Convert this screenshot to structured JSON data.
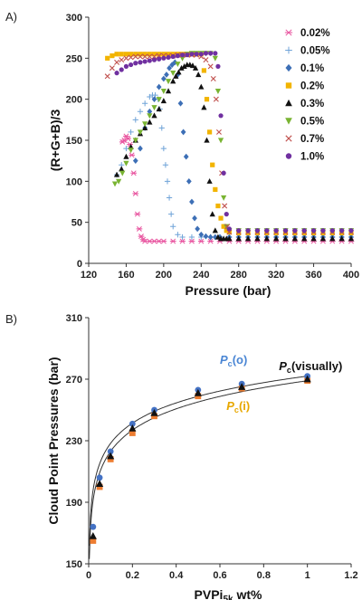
{
  "chart_data": [
    {
      "panel_label": "A)",
      "type": "scatter",
      "xlabel": "Pressure (bar)",
      "ylabel": "(R+G+B)/3",
      "xlim": [
        120,
        400
      ],
      "ylim": [
        0,
        300
      ],
      "xticks": [
        "120",
        "160",
        "200",
        "240",
        "280",
        "320",
        "360",
        "400"
      ],
      "yticks": [
        "0",
        "50",
        "100",
        "150",
        "200",
        "250",
        "300"
      ],
      "legend_position": "top-right",
      "grid": false,
      "series": [
        {
          "name": "0.02%",
          "color": "#e8549f",
          "marker": "star",
          "x": [
            156,
            158,
            160,
            162,
            164,
            166,
            168,
            170,
            172,
            174,
            176,
            178,
            180,
            185,
            190,
            195,
            200,
            210,
            220,
            230,
            240,
            250,
            260,
            270,
            280,
            290,
            300,
            310,
            320,
            330,
            340,
            350,
            360,
            370,
            380,
            390,
            400
          ],
          "y": [
            148,
            150,
            155,
            152,
            145,
            132,
            110,
            85,
            60,
            42,
            33,
            29,
            27,
            27,
            27,
            27,
            27,
            27,
            27,
            27,
            27,
            27,
            27,
            27,
            27,
            27,
            27,
            27,
            27,
            27,
            27,
            27,
            27,
            27,
            27,
            27,
            27
          ]
        },
        {
          "name": "0.05%",
          "color": "#6fa3d8",
          "marker": "plus",
          "x": [
            150,
            155,
            160,
            165,
            170,
            175,
            180,
            185,
            188,
            191,
            194,
            196,
            198,
            200,
            202,
            204,
            206,
            208,
            210,
            215,
            220,
            230,
            240,
            250,
            260,
            270,
            280,
            290,
            300,
            310,
            320,
            330,
            340,
            350,
            360,
            370,
            380,
            390,
            400
          ],
          "y": [
            108,
            120,
            140,
            160,
            175,
            185,
            195,
            203,
            205,
            205,
            200,
            188,
            165,
            140,
            120,
            100,
            80,
            60,
            45,
            35,
            32,
            32,
            32,
            32,
            32,
            32,
            32,
            32,
            32,
            32,
            32,
            32,
            32,
            32,
            32,
            32,
            32,
            32,
            32
          ]
        },
        {
          "name": "0.1%",
          "color": "#3d6fb6",
          "marker": "diamond",
          "x": [
            170,
            175,
            180,
            185,
            190,
            195,
            200,
            203,
            206,
            209,
            212,
            215,
            218,
            221,
            224,
            227,
            230,
            233,
            236,
            240,
            245,
            250,
            255,
            260,
            270,
            280,
            290,
            300,
            310,
            320,
            330,
            340,
            350,
            360,
            370,
            380,
            390,
            400
          ],
          "y": [
            125,
            140,
            165,
            185,
            200,
            215,
            225,
            230,
            238,
            242,
            245,
            230,
            195,
            160,
            130,
            100,
            75,
            55,
            42,
            35,
            33,
            32,
            32,
            32,
            32,
            32,
            32,
            32,
            32,
            32,
            32,
            32,
            32,
            32,
            32,
            32,
            32,
            32
          ]
        },
        {
          "name": "0.2%",
          "color": "#f2b400",
          "marker": "square",
          "x": [
            140,
            145,
            150,
            155,
            160,
            165,
            170,
            175,
            180,
            185,
            190,
            195,
            200,
            205,
            210,
            215,
            220,
            225,
            230,
            235,
            240,
            243,
            246,
            249,
            252,
            255,
            258,
            261,
            264,
            267,
            270,
            280,
            290,
            300,
            310,
            320,
            330,
            340,
            350,
            360,
            370,
            380,
            390,
            400
          ],
          "y": [
            250,
            253,
            255,
            255,
            255,
            255,
            255,
            255,
            255,
            255,
            255,
            255,
            255,
            255,
            255,
            255,
            255,
            255,
            255,
            255,
            255,
            235,
            200,
            160,
            120,
            90,
            70,
            55,
            45,
            40,
            38,
            37,
            37,
            37,
            37,
            37,
            37,
            37,
            37,
            37,
            37,
            37,
            37,
            37
          ]
        },
        {
          "name": "0.3%",
          "color": "#111111",
          "marker": "triangle",
          "x": [
            150,
            155,
            160,
            165,
            170,
            175,
            180,
            185,
            190,
            195,
            200,
            205,
            210,
            213,
            216,
            219,
            222,
            225,
            228,
            231,
            234,
            237,
            240,
            243,
            246,
            249,
            252,
            255,
            258,
            261,
            264,
            267,
            270,
            280,
            290,
            300,
            310,
            320,
            330,
            340,
            350,
            360,
            370,
            380,
            390,
            400
          ],
          "y": [
            108,
            115,
            130,
            142,
            150,
            158,
            165,
            172,
            180,
            188,
            198,
            210,
            222,
            228,
            233,
            238,
            240,
            242,
            242,
            241,
            238,
            230,
            215,
            190,
            150,
            100,
            60,
            40,
            32,
            30,
            30,
            30,
            30,
            30,
            30,
            30,
            30,
            30,
            30,
            30,
            30,
            30,
            30,
            30,
            30,
            30
          ]
        },
        {
          "name": "0.5%",
          "color": "#79b432",
          "marker": "triangle-down",
          "x": [
            148,
            152,
            156,
            160,
            165,
            170,
            175,
            180,
            185,
            190,
            195,
            200,
            205,
            210,
            215,
            220,
            225,
            230,
            235,
            240,
            245,
            250,
            255,
            258,
            261,
            264,
            267,
            270,
            280,
            290,
            300,
            310,
            320,
            330,
            340,
            350,
            360,
            370,
            380,
            390,
            400
          ],
          "y": [
            97,
            100,
            110,
            122,
            138,
            150,
            160,
            170,
            180,
            190,
            200,
            210,
            222,
            232,
            243,
            250,
            255,
            256,
            256,
            256,
            256,
            256,
            250,
            210,
            150,
            80,
            45,
            40,
            40,
            40,
            40,
            40,
            40,
            40,
            40,
            40,
            40,
            40,
            40,
            40,
            40
          ]
        },
        {
          "name": "0.7%",
          "color": "#c0504d",
          "marker": "x",
          "x": [
            140,
            145,
            150,
            155,
            160,
            165,
            170,
            175,
            180,
            185,
            190,
            195,
            200,
            205,
            210,
            215,
            220,
            225,
            230,
            235,
            240,
            245,
            250,
            253,
            256,
            259,
            262,
            265,
            268,
            270,
            280,
            290,
            300,
            310,
            320,
            330,
            340,
            350,
            360,
            370,
            380,
            390,
            400
          ],
          "y": [
            228,
            238,
            245,
            248,
            250,
            251,
            252,
            252,
            252,
            252,
            252,
            253,
            253,
            253,
            253,
            254,
            254,
            254,
            254,
            254,
            252,
            248,
            240,
            225,
            200,
            160,
            110,
            70,
            45,
            38,
            38,
            38,
            38,
            38,
            38,
            38,
            38,
            38,
            38,
            38,
            38,
            38,
            38
          ]
        },
        {
          "name": "1.0%",
          "color": "#7030a0",
          "marker": "circle",
          "x": [
            150,
            155,
            160,
            165,
            170,
            175,
            180,
            185,
            190,
            195,
            200,
            205,
            210,
            215,
            220,
            225,
            230,
            235,
            240,
            245,
            250,
            255,
            258,
            261,
            264,
            267,
            270,
            280,
            290,
            300,
            310,
            320,
            330,
            340,
            350,
            360,
            370,
            380,
            390,
            400
          ],
          "y": [
            232,
            236,
            240,
            242,
            244,
            245,
            246,
            247,
            248,
            249,
            250,
            251,
            252,
            253,
            254,
            254,
            255,
            255,
            255,
            256,
            256,
            256,
            240,
            180,
            110,
            60,
            42,
            40,
            40,
            40,
            40,
            40,
            40,
            40,
            40,
            40,
            40,
            40,
            40,
            40
          ]
        }
      ]
    },
    {
      "panel_label": "B)",
      "type": "scatter",
      "xlabel": "PVPi",
      "xlabel_sub": "5k",
      "xlabel_suffix": " wt%",
      "ylabel": "Cloud  Point Pressures  (bar)",
      "xlim": [
        0,
        1.2
      ],
      "ylim": [
        150,
        310
      ],
      "xticks": [
        "0",
        "0.2",
        "0.4",
        "0.6",
        "0.8",
        "1",
        "1.2"
      ],
      "yticks": [
        "150",
        "190",
        "230",
        "270",
        "310"
      ],
      "grid": false,
      "series": [
        {
          "name": "Pc(o)",
          "color": "#4472c4",
          "marker": "circle",
          "x": [
            0.02,
            0.05,
            0.1,
            0.2,
            0.3,
            0.5,
            0.7,
            1.0
          ],
          "y": [
            174,
            206,
            223,
            241,
            250,
            263,
            267,
            272
          ]
        },
        {
          "name": "Pc(visually)",
          "color": "#111111",
          "marker": "triangle",
          "x": [
            0.02,
            0.05,
            0.1,
            0.2,
            0.3,
            0.5,
            0.7,
            1.0
          ],
          "y": [
            168,
            202,
            220,
            238,
            248,
            261,
            265,
            270
          ]
        },
        {
          "name": "Pc(i)",
          "color": "#ed7d31",
          "marker": "square",
          "x": [
            0.02,
            0.05,
            0.1,
            0.2,
            0.3,
            0.5,
            0.7,
            1.0
          ],
          "y": [
            165,
            200,
            218,
            235,
            246,
            259,
            264,
            269
          ]
        }
      ],
      "annotations": [
        {
          "prefix": "P",
          "sub": "c",
          "suffix": "(o)",
          "color": "#4a86d4",
          "x": 0.6,
          "y": 280
        },
        {
          "prefix": "P",
          "sub": "c",
          "suffix": "(visually)",
          "color": "#111111",
          "x": 0.87,
          "y": 276
        },
        {
          "prefix": "P",
          "sub": "c",
          "suffix": "(i)",
          "color": "#e8a800",
          "x": 0.63,
          "y": 250
        }
      ],
      "fit_curves": [
        {
          "name": "upper-fit",
          "a": 272,
          "b": 40,
          "x0": 0.0,
          "color": "#333333"
        },
        {
          "name": "lower-fit",
          "a": 269,
          "b": 42,
          "x0": 0.0,
          "color": "#333333"
        }
      ]
    }
  ]
}
